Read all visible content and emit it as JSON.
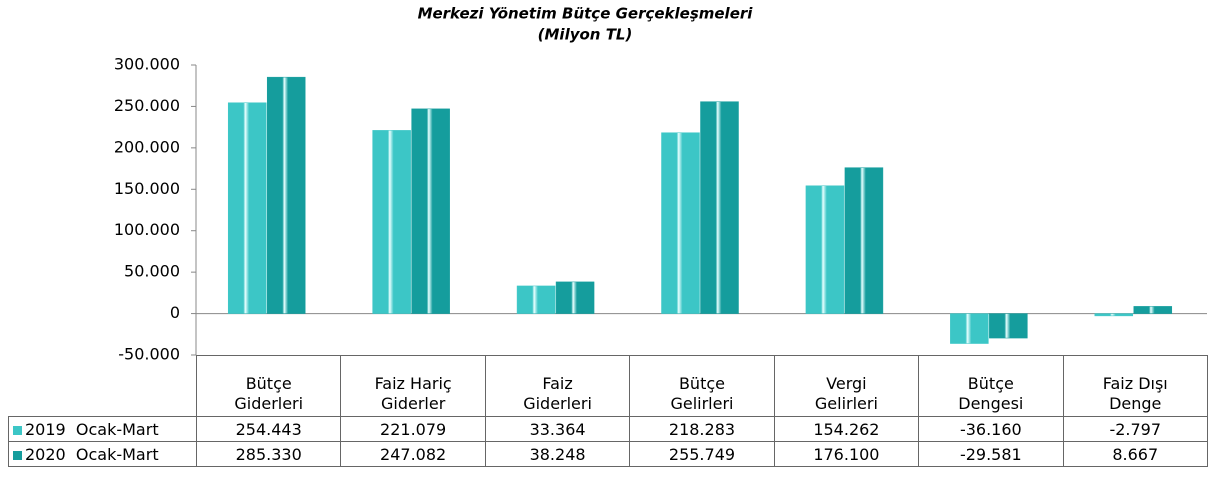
{
  "chart_data": {
    "type": "bar",
    "title": "Merkezi Yönetim Bütçe Gerçekleşmeleri",
    "subtitle": "(Milyon TL)",
    "categories": [
      "Bütçe\nGiderleri",
      "Faiz Hariç\nGiderler",
      "Faiz\nGiderleri",
      "Bütçe\nGelirleri",
      "Vergi\nGelirleri",
      "Bütçe\nDengesi",
      "Faiz Dışı\nDenge"
    ],
    "series": [
      {
        "name": "2019  Ocak-Mart",
        "color": "#3cc6c6",
        "values": [
          254443,
          221079,
          33364,
          218283,
          154262,
          -36160,
          -2797
        ],
        "value_labels": [
          "254.443",
          "221.079",
          "33.364",
          "218.283",
          "154.262",
          "-36.160",
          "-2.797"
        ]
      },
      {
        "name": "2020  Ocak-Mart",
        "color": "#159d9d",
        "values": [
          285330,
          247082,
          38248,
          255749,
          176100,
          -29581,
          8667
        ],
        "value_labels": [
          "285.330",
          "247.082",
          "38.248",
          "255.749",
          "176.100",
          "-29.581",
          "8.667"
        ]
      }
    ],
    "ylim": [
      -50000,
      300000
    ],
    "yticks": [
      {
        "value": -50000,
        "label": "-50.000"
      },
      {
        "value": 50000,
        "label": "50.000"
      },
      {
        "value": 100000,
        "label": "100.000"
      },
      0,
      {
        "value": 150000,
        "label": "150.000"
      },
      {
        "value": 200000,
        "label": "200.000"
      },
      {
        "value": 250000,
        "label": "250.000"
      },
      {
        "value": 300000,
        "label": "300.000"
      }
    ],
    "grid": false
  }
}
